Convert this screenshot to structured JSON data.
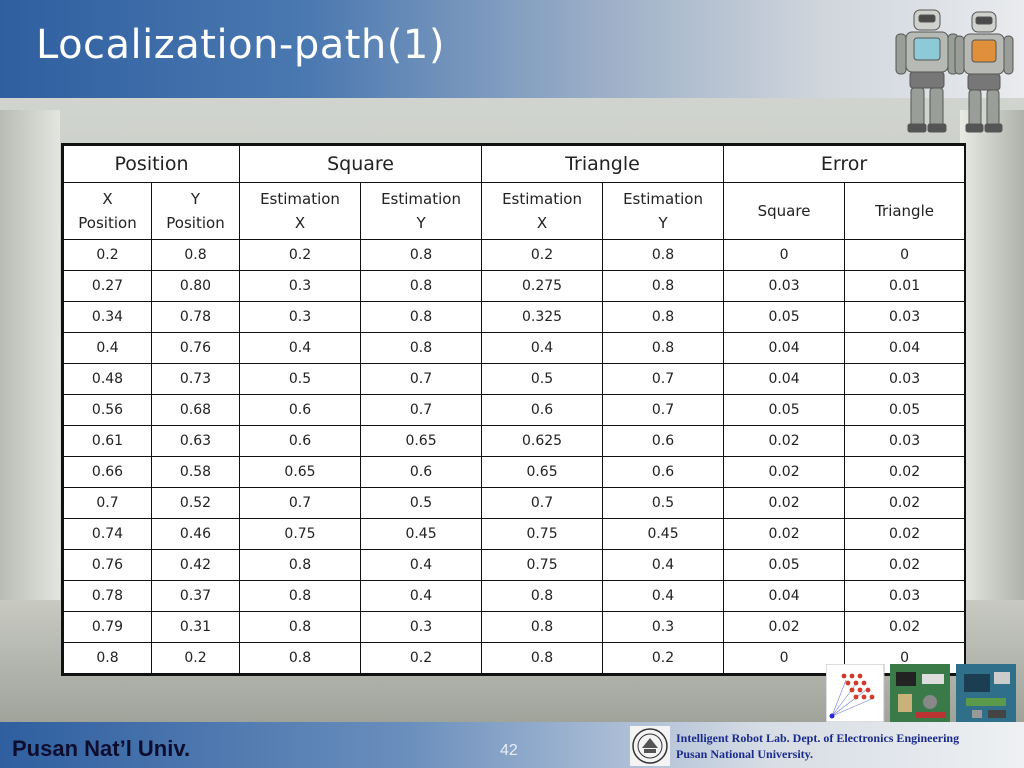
{
  "slide": {
    "title": "Localization-path(1)",
    "page_number": "42"
  },
  "footer": {
    "university": "Pusan Nat’l Univ.",
    "lab_line1": "Intelligent Robot Lab. Dept. of Electronics Engineering",
    "lab_line2": "Pusan National  University."
  },
  "images": {
    "top_right": "humanoid-robots-photo",
    "seal": "university-seal-logo",
    "thumb1": "network-graph-diagram",
    "thumb2": "circuit-board-photo",
    "thumb3": "circuit-board-photo"
  },
  "table": {
    "group_headers": [
      "Position",
      "Square",
      "Triangle",
      "Error"
    ],
    "sub_headers": [
      [
        "X",
        "Position"
      ],
      [
        "Y",
        "Position"
      ],
      [
        "Estimation",
        "X"
      ],
      [
        "Estimation",
        "Y"
      ],
      [
        "Estimation",
        "X"
      ],
      [
        "Estimation",
        "Y"
      ],
      [
        "Square"
      ],
      [
        "Triangle"
      ]
    ],
    "rows": [
      [
        "0.2",
        "0.8",
        "0.2",
        "0.8",
        "0.2",
        "0.8",
        "0",
        "0"
      ],
      [
        "0.27",
        "0.80",
        "0.3",
        "0.8",
        "0.275",
        "0.8",
        "0.03",
        "0.01"
      ],
      [
        "0.34",
        "0.78",
        "0.3",
        "0.8",
        "0.325",
        "0.8",
        "0.05",
        "0.03"
      ],
      [
        "0.4",
        "0.76",
        "0.4",
        "0.8",
        "0.4",
        "0.8",
        "0.04",
        "0.04"
      ],
      [
        "0.48",
        "0.73",
        "0.5",
        "0.7",
        "0.5",
        "0.7",
        "0.04",
        "0.03"
      ],
      [
        "0.56",
        "0.68",
        "0.6",
        "0.7",
        "0.6",
        "0.7",
        "0.05",
        "0.05"
      ],
      [
        "0.61",
        "0.63",
        "0.6",
        "0.65",
        "0.625",
        "0.6",
        "0.02",
        "0.03"
      ],
      [
        "0.66",
        "0.58",
        "0.65",
        "0.6",
        "0.65",
        "0.6",
        "0.02",
        "0.02"
      ],
      [
        "0.7",
        "0.52",
        "0.7",
        "0.5",
        "0.7",
        "0.5",
        "0.02",
        "0.02"
      ],
      [
        "0.74",
        "0.46",
        "0.75",
        "0.45",
        "0.75",
        "0.45",
        "0.02",
        "0.02"
      ],
      [
        "0.76",
        "0.42",
        "0.8",
        "0.4",
        "0.75",
        "0.4",
        "0.05",
        "0.02"
      ],
      [
        "0.78",
        "0.37",
        "0.8",
        "0.4",
        "0.8",
        "0.4",
        "0.04",
        "0.03"
      ],
      [
        "0.79",
        "0.31",
        "0.8",
        "0.3",
        "0.8",
        "0.3",
        "0.02",
        "0.02"
      ],
      [
        "0.8",
        "0.2",
        "0.8",
        "0.2",
        "0.8",
        "0.2",
        "0",
        "0"
      ]
    ]
  }
}
